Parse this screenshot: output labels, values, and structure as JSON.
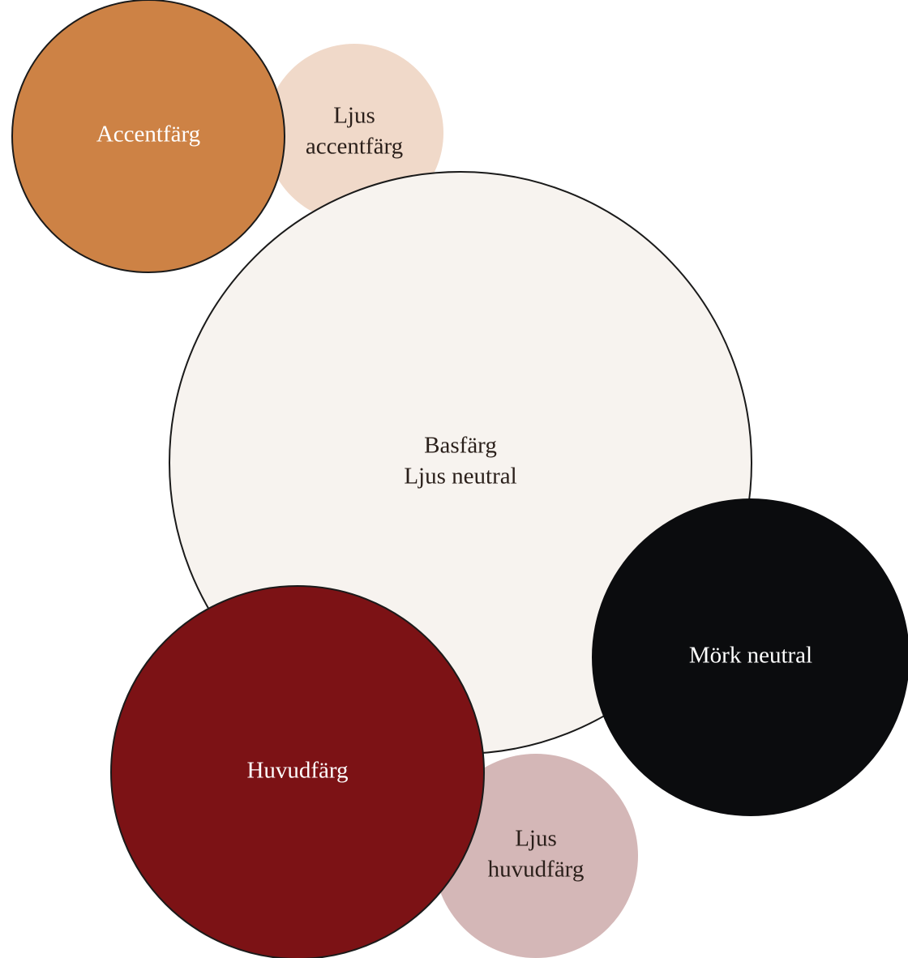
{
  "swatches": [
    {
      "id": "ljus-accentfarg",
      "lines": [
        "Ljus",
        "accentfärg"
      ],
      "fill": "#f0d9c9",
      "stroke": "none",
      "text_color": "#2a1f1a"
    },
    {
      "id": "accentfarg",
      "lines": [
        "Accentfärg"
      ],
      "fill": "#cd8245",
      "stroke": "#1a1a1a",
      "text_color": "#ffffff"
    },
    {
      "id": "basfarg",
      "lines": [
        "Basfärg",
        "Ljus neutral"
      ],
      "fill": "#f7f3ef",
      "stroke": "#1a1a1a",
      "text_color": "#2a1f1a"
    },
    {
      "id": "ljus-huvudfarg",
      "lines": [
        "Ljus",
        "huvudfärg"
      ],
      "fill": "#d4b7b7",
      "stroke": "none",
      "text_color": "#2a1f1a"
    },
    {
      "id": "mork-neutral",
      "lines": [
        "Mörk neutral"
      ],
      "fill": "#0b0c0e",
      "stroke": "none",
      "text_color": "#ffffff"
    },
    {
      "id": "huvudfarg",
      "lines": [
        "Huvudfärg"
      ],
      "fill": "#7c1215",
      "stroke": "#1a1a1a",
      "text_color": "#ffffff"
    }
  ]
}
